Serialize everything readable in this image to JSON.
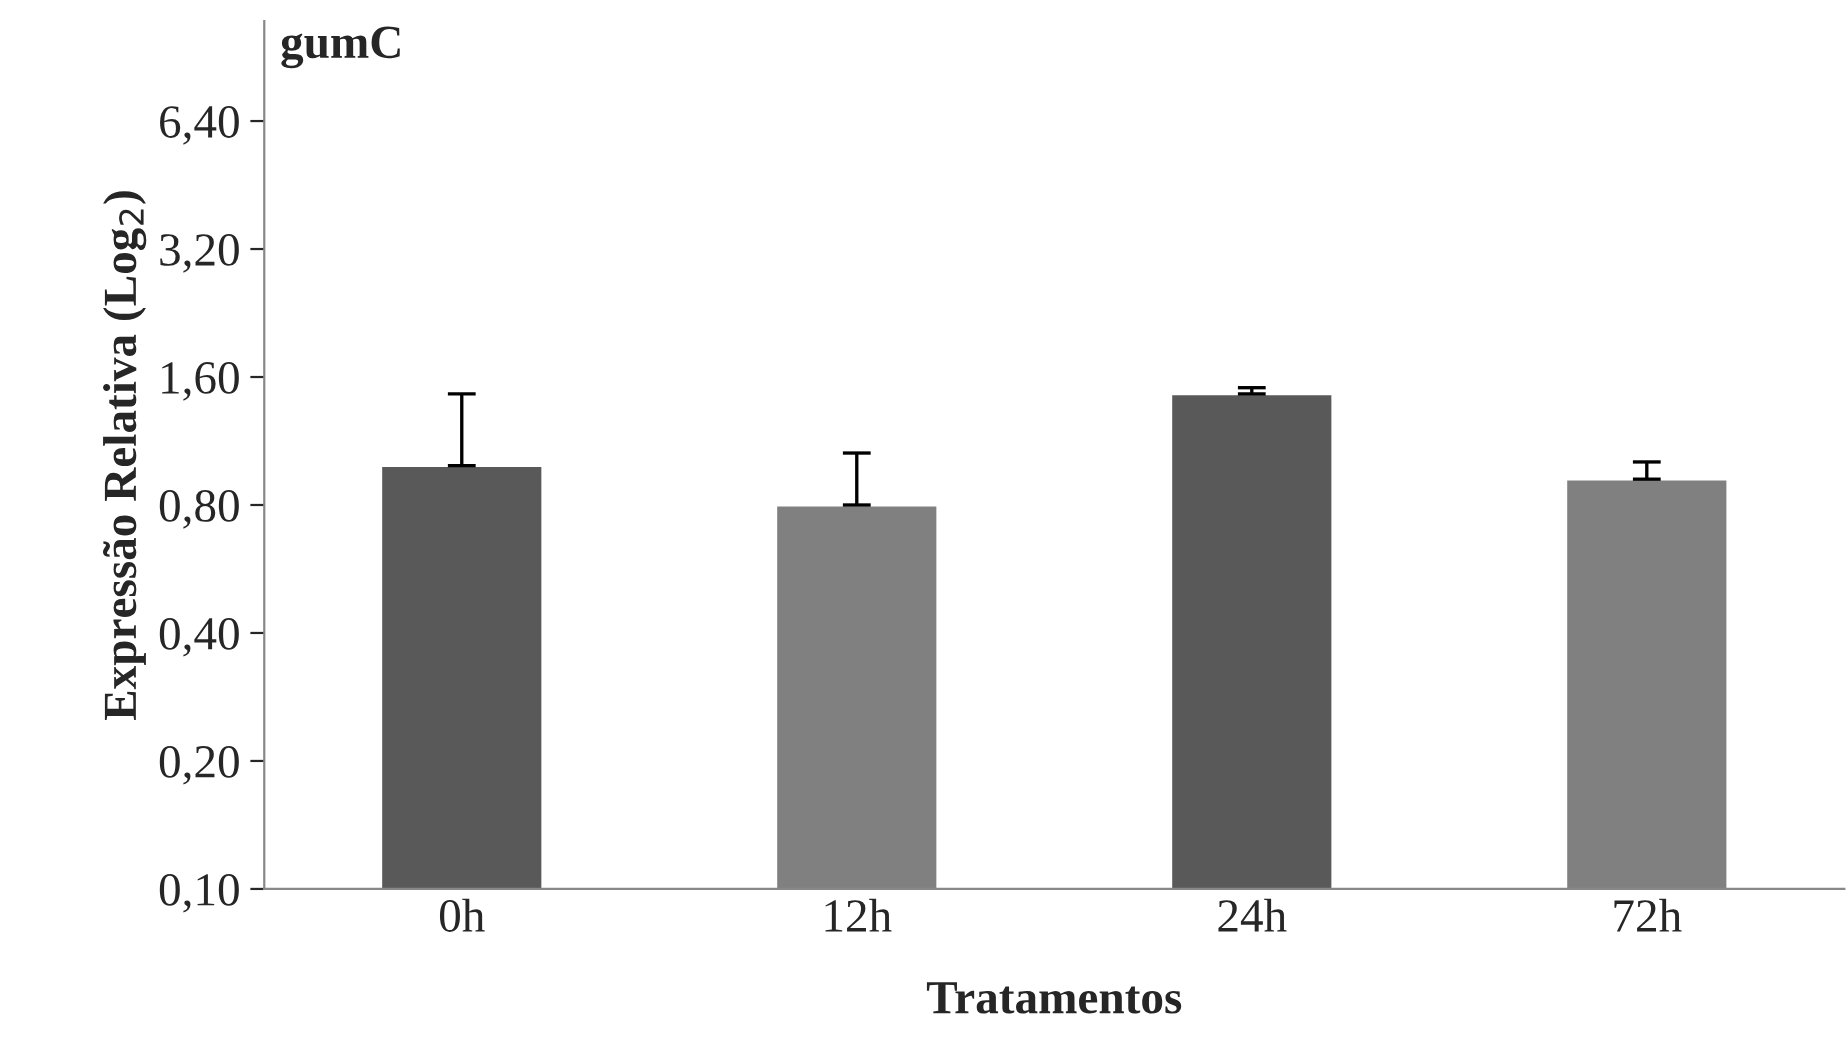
{
  "chart_data": {
    "type": "bar",
    "title": "gumC",
    "xlabel": "Tratamentos",
    "ylabel": "Expressão Relativa (Log$_{2}$)",
    "categories": [
      "0h",
      "12h",
      "24h",
      "72h"
    ],
    "values": [
      0.99,
      0.8,
      1.46,
      0.92
    ],
    "colors": [
      "#595959",
      "#808080",
      "#595959",
      "#808080"
    ],
    "errors": [
      [
        0.99,
        1.46
      ],
      [
        0.8,
        1.06
      ],
      [
        1.46,
        1.51
      ],
      [
        0.92,
        1.01
      ]
    ],
    "log": true,
    "ylim": [
      0.1,
      11
    ],
    "yticks": [
      {
        "value": 0.1,
        "label": "0,10"
      },
      {
        "value": 0.2,
        "label": "0,20"
      },
      {
        "value": 0.4,
        "label": "0,40"
      },
      {
        "value": 0.8,
        "label": "0,80"
      },
      {
        "value": 1.6,
        "label": "1,60"
      },
      {
        "value": 3.2,
        "label": "3,20"
      },
      {
        "value": 6.4,
        "label": "6,40"
      }
    ],
    "grid": false,
    "legend": false
  }
}
